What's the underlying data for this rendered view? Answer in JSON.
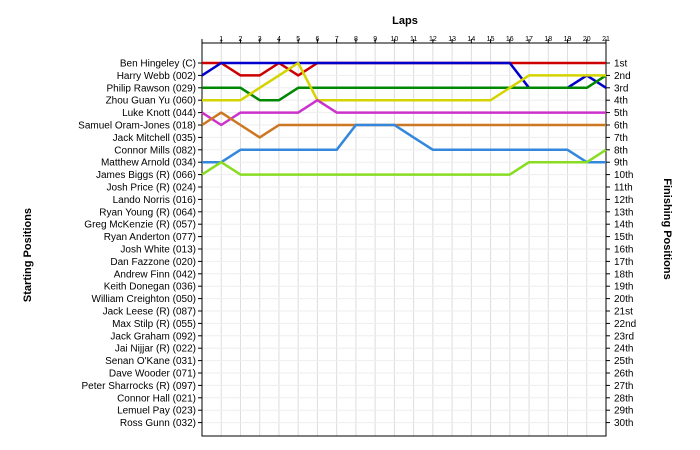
{
  "chart_data": {
    "type": "line",
    "title": "",
    "xlabel": "Laps",
    "ylabel_left": "Starting Positions",
    "ylabel_right": "Finishing Positions",
    "x": [
      1,
      2,
      3,
      4,
      5,
      6,
      7,
      8,
      9,
      10,
      11,
      12,
      13,
      14,
      15,
      16,
      17,
      18,
      19,
      20,
      21
    ],
    "xlim": [
      0,
      21
    ],
    "ylim": [
      1,
      30
    ],
    "y_reversed": true,
    "grid": true,
    "legend": "none",
    "drivers": [
      "Ben Hingeley (C)",
      "Harry Webb (002)",
      "Philip Rawson (029)",
      "Zhou Guan Yu (060)",
      "Luke Knott (044)",
      "Samuel Oram-Jones (018)",
      "Jack Mitchell (035)",
      "Connor Mills (082)",
      "Matthew Arnold (034)",
      "James Biggs (R) (066)",
      "Josh Price (R) (024)",
      "Lando Norris (016)",
      "Ryan Young (R) (064)",
      "Greg McKenzie (R) (057)",
      "Ryan Anderton (077)",
      "Josh White (013)",
      "Dan Fazzone (020)",
      "Andrew Finn (042)",
      "Keith Donegan (036)",
      "William Creighton (050)",
      "Jack Leese (R) (087)",
      "Max Stilp  (R) (055)",
      "Jack Graham (092)",
      "Jai Nijjar (R) (022)",
      "Senan O'Kane (031)",
      "Dave Wooder (071)",
      "Peter Sharrocks (R) (097)",
      "Connor Hall (021)",
      "Lemuel Pay (023)",
      "Ross Gunn (032)"
    ],
    "finishing_positions": [
      "1st",
      "2nd",
      "3rd",
      "4th",
      "5th",
      "6th",
      "7th",
      "8th",
      "9th",
      "10th",
      "11th",
      "12th",
      "13th",
      "14th",
      "15th",
      "16th",
      "17th",
      "18th",
      "19th",
      "20th",
      "21st",
      "22nd",
      "23rd",
      "24th",
      "25th",
      "26th",
      "27th",
      "28th",
      "29th",
      "30th"
    ],
    "series": [
      {
        "color": "#cc0000",
        "start": 1,
        "values": [
          1,
          2,
          2,
          1,
          2,
          1,
          1,
          1,
          1,
          1,
          1,
          1,
          1,
          1,
          1,
          1,
          1,
          1,
          1,
          1,
          1
        ]
      },
      {
        "color": "#0000cc",
        "start": 2,
        "values": [
          1,
          1,
          1,
          1,
          1,
          1,
          1,
          1,
          1,
          1,
          1,
          1,
          1,
          1,
          1,
          1,
          3,
          3,
          3,
          2,
          3
        ]
      },
      {
        "color": "#008800",
        "start": 3,
        "values": [
          3,
          3,
          4,
          4,
          3,
          3,
          3,
          3,
          3,
          3,
          3,
          3,
          3,
          3,
          3,
          3,
          3,
          3,
          3,
          3,
          2
        ]
      },
      {
        "color": "#d4d400",
        "start": 4,
        "values": [
          4,
          4,
          3,
          2,
          1,
          4,
          4,
          4,
          4,
          4,
          4,
          4,
          4,
          4,
          4,
          3,
          2,
          2,
          2,
          2,
          2
        ]
      },
      {
        "color": "#cc33cc",
        "start": 5,
        "values": [
          6,
          5,
          5,
          5,
          5,
          4,
          5,
          5,
          5,
          5,
          5,
          5,
          5,
          5,
          5,
          5,
          5,
          5,
          5,
          5,
          5
        ]
      },
      {
        "color": "#cc7722",
        "start": 6,
        "values": [
          5,
          6,
          7,
          6,
          6,
          6,
          6,
          6,
          6,
          6,
          6,
          6,
          6,
          6,
          6,
          6,
          6,
          6,
          6,
          6,
          6
        ]
      },
      {
        "color": "#3388dd",
        "start": 9,
        "values": [
          9,
          8,
          8,
          8,
          8,
          8,
          8,
          6,
          6,
          6,
          7,
          8,
          8,
          8,
          8,
          8,
          8,
          8,
          8,
          9,
          9
        ]
      },
      {
        "color": "#88dd22",
        "start": 10,
        "values": [
          9,
          10,
          10,
          10,
          10,
          10,
          10,
          10,
          10,
          10,
          10,
          10,
          10,
          10,
          10,
          10,
          9,
          9,
          9,
          9,
          8
        ]
      }
    ]
  }
}
